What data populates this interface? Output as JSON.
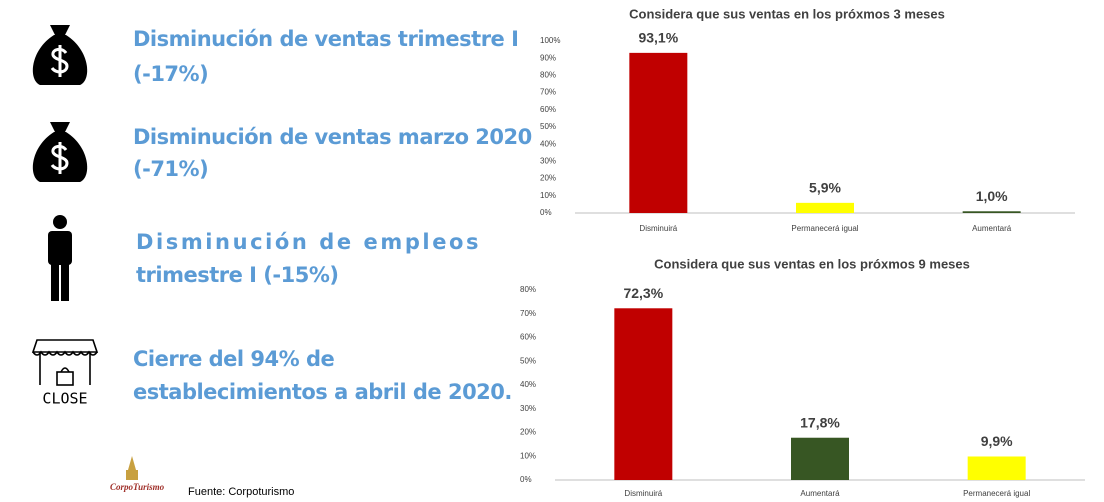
{
  "items": [
    {
      "lines": [
        "Disminución de ventas trimestre I",
        "(-17%)"
      ]
    },
    {
      "lines": [
        "Disminución de ventas marzo 2020",
        "(-71%)"
      ]
    },
    {
      "lines": [
        "Disminución de empleos",
        "trimestre I (-15%)"
      ]
    },
    {
      "lines": [
        "Cierre del 94% de",
        "establecimientos a abril de 2020."
      ],
      "icon_label": "CLOSE"
    }
  ],
  "logo": "CorpoTurismo",
  "source": "Fuente: Corpoturismo",
  "chart_data": [
    {
      "type": "bar",
      "title": "Considera que sus ventas en los próxmos 3 meses",
      "categories": [
        "Disminuirá",
        "Permanecerá igual",
        "Aumentará"
      ],
      "values": [
        93.1,
        5.9,
        1.0
      ],
      "value_labels": [
        "93,1%",
        "5,9%",
        "1,0%"
      ],
      "colors": [
        "#c00000",
        "#ffff00",
        "#375623"
      ],
      "ylim": [
        0,
        100
      ],
      "yticks": [
        {
          "value": 0,
          "label": "0%"
        },
        {
          "value": 10,
          "label": "10%"
        },
        {
          "value": 20,
          "label": "20%"
        },
        {
          "value": 30,
          "label": "30%"
        },
        {
          "value": 40,
          "label": "40%"
        },
        {
          "value": 50,
          "label": "50%"
        },
        {
          "value": 60,
          "label": "60%"
        },
        {
          "value": 70,
          "label": "70%"
        },
        {
          "value": 80,
          "label": "80%"
        },
        {
          "value": 90,
          "label": "90%"
        },
        {
          "value": 100,
          "label": "100%"
        }
      ],
      "grid": false
    },
    {
      "type": "bar",
      "title": "Considera que sus ventas en los próxmos 9 meses",
      "categories": [
        "Disminuirá",
        "Aumentará",
        "Permanecerá igual"
      ],
      "values": [
        72.3,
        17.8,
        9.9
      ],
      "value_labels": [
        "72,3%",
        "17,8%",
        "9,9%"
      ],
      "colors": [
        "#c00000",
        "#375623",
        "#ffff00"
      ],
      "ylim": [
        0,
        80
      ],
      "yticks": [
        {
          "value": 0,
          "label": "0%"
        },
        {
          "value": 10,
          "label": "10%"
        },
        {
          "value": 20,
          "label": "20%"
        },
        {
          "value": 30,
          "label": "30%"
        },
        {
          "value": 40,
          "label": "40%"
        },
        {
          "value": 50,
          "label": "50%"
        },
        {
          "value": 60,
          "label": "60%"
        },
        {
          "value": 70,
          "label": "70%"
        },
        {
          "value": 80,
          "label": "80%"
        }
      ],
      "grid": false
    }
  ]
}
